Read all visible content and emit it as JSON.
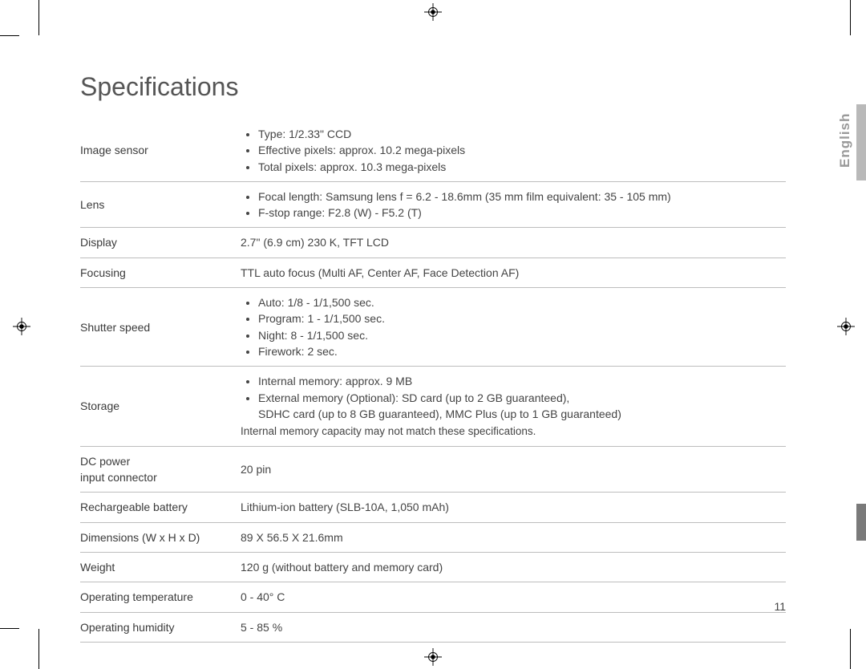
{
  "title": "Specifications",
  "language_tab": "English",
  "page_number": "11",
  "rows": [
    {
      "label": "Image sensor",
      "type": "list",
      "items": [
        "Type: 1/2.33\" CCD",
        "Effective pixels: approx. 10.2 mega-pixels",
        "Total pixels: approx. 10.3 mega-pixels"
      ]
    },
    {
      "label": "Lens",
      "type": "list",
      "items": [
        "Focal length: Samsung lens f = 6.2 - 18.6mm (35 mm film equivalent: 35 - 105 mm)",
        "F-stop range: F2.8 (W) - F5.2 (T)"
      ]
    },
    {
      "label": "Display",
      "type": "text",
      "value": "2.7\" (6.9 cm) 230 K, TFT LCD"
    },
    {
      "label": "Focusing",
      "type": "text",
      "value": "TTL auto focus (Multi AF, Center AF, Face Detection AF)"
    },
    {
      "label": "Shutter speed",
      "type": "list",
      "items": [
        "Auto: 1/8 - 1/1,500 sec.",
        "Program: 1 - 1/1,500 sec.",
        "Night: 8 - 1/1,500 sec.",
        "Firework: 2 sec."
      ]
    },
    {
      "label": "Storage",
      "type": "list_with_note",
      "items": [
        "Internal memory: approx. 9 MB",
        "External memory (Optional): SD card (up to 2 GB guaranteed),\nSDHC card (up to 8 GB guaranteed), MMC Plus (up to 1 GB guaranteed)"
      ],
      "note": "Internal memory capacity may not match these specifications."
    },
    {
      "label": "DC power\ninput connector",
      "type": "text",
      "value": "20 pin"
    },
    {
      "label": "Rechargeable battery",
      "type": "text",
      "value": "Lithium-ion battery (SLB-10A, 1,050 mAh)"
    },
    {
      "label": "Dimensions (W x H x D)",
      "type": "text",
      "value": "89 X 56.5 X 21.6mm"
    },
    {
      "label": "Weight",
      "type": "text",
      "value": "120 g (without battery and memory card)"
    },
    {
      "label": "Operating temperature",
      "type": "text",
      "value": "0 - 40° C"
    },
    {
      "label": "Operating humidity",
      "type": "text",
      "value": "5 - 85 %"
    }
  ],
  "colors": {
    "text": "#3a3a3a",
    "border": "#bdbdbd",
    "title": "#555555",
    "tab_light": "#b9b9b9",
    "tab_dark": "#7a7a7a",
    "lang_text": "#9a9a9a"
  }
}
